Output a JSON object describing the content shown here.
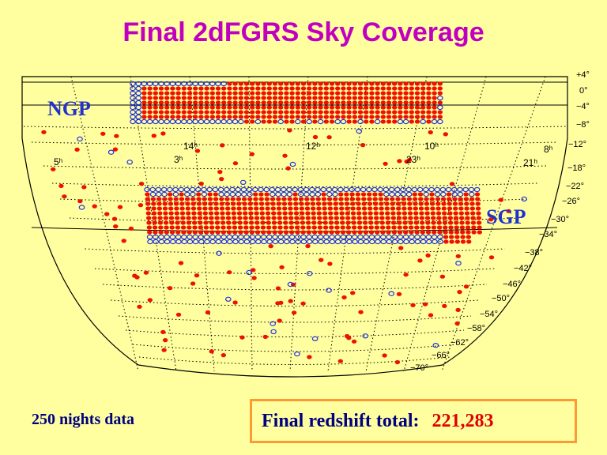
{
  "header": {
    "title": "Final 2dFGRS Sky Coverage"
  },
  "map": {
    "regions": [
      "NGP",
      "SGP"
    ],
    "declination_labels": [
      "+4°",
      "0°",
      "−4°",
      "−8°",
      "−12°",
      "−18°",
      "−22°",
      "−26°",
      "−30°",
      "−34°",
      "−38°",
      "−42°",
      "−46°",
      "−50°",
      "−54°",
      "−58°",
      "−62°",
      "−66°",
      "−70°"
    ],
    "ra_labels": [
      "14ʰ",
      "12ʰ",
      "10ʰ",
      "8ʰ",
      "5ʰ",
      "3ʰ",
      "23ʰ",
      "21ʰ"
    ]
  },
  "footer": {
    "note": "250 nights data",
    "total_label": "Final redshift total:",
    "total_value": "221,283"
  }
}
